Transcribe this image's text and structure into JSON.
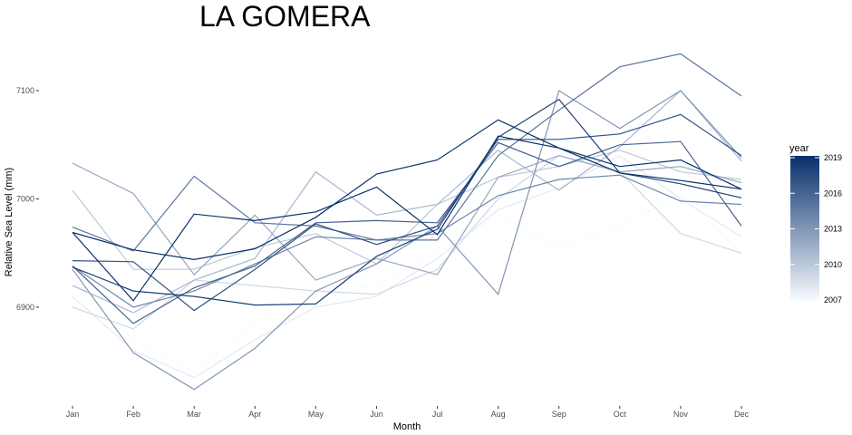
{
  "chart_data": {
    "type": "line",
    "title": "LA GOMERA",
    "xlabel": "Month",
    "ylabel": "Relative Sea Level (mm)",
    "categories": [
      "Jan",
      "Feb",
      "Mar",
      "Apr",
      "May",
      "Jun",
      "Jul",
      "Aug",
      "Sep",
      "Oct",
      "Nov",
      "Dec"
    ],
    "yticks": [
      6900,
      7000,
      7100
    ],
    "ylim": [
      6816,
      7143
    ],
    "grid": false,
    "legend": {
      "title": "year",
      "position": "right",
      "ticks": [
        2019,
        2016,
        2013,
        2010,
        2007
      ],
      "range": [
        2007,
        2019
      ],
      "color_low": "#f7fbff",
      "color_high": "#08306b"
    },
    "series": [
      {
        "year": 2007,
        "values": [
          6925,
          6870,
          6840,
          6885,
          6915,
          6920,
          6950,
          6985,
          6955,
          6975,
          7005,
          6950
        ]
      },
      {
        "year": 2008,
        "values": [
          6910,
          6860,
          6835,
          6870,
          6900,
          6910,
          6945,
          6990,
          7010,
          7040,
          7000,
          6965
        ]
      },
      {
        "year": 2009,
        "values": [
          6900,
          6880,
          6925,
          6920,
          6915,
          6912,
          6935,
          7000,
          7040,
          7025,
          6968,
          6950
        ]
      },
      {
        "year": 2010,
        "values": [
          7008,
          6935,
          6935,
          6955,
          6968,
          6940,
          6995,
          7020,
          7030,
          7045,
          7025,
          7018
        ]
      },
      {
        "year": 2011,
        "values": [
          6920,
          6895,
          6925,
          6945,
          7025,
          6985,
          6995,
          7045,
          7008,
          7048,
          7100,
          7035
        ]
      },
      {
        "year": 2012,
        "values": [
          7033,
          7005,
          6930,
          6985,
          6925,
          6945,
          6930,
          7020,
          7040,
          7025,
          7030,
          7015
        ]
      },
      {
        "year": 2013,
        "values": [
          6935,
          6858,
          6824,
          6862,
          6915,
          6940,
          6975,
          6912,
          7100,
          7065,
          7100,
          7038
        ]
      },
      {
        "year": 2014,
        "values": [
          6938,
          6900,
          6915,
          6940,
          6965,
          6962,
          6968,
          7003,
          7018,
          7022,
          6998,
          6995
        ]
      },
      {
        "year": 2015,
        "values": [
          6974,
          6952,
          7021,
          6978,
          6975,
          6962,
          6962,
          7040,
          7082,
          7122,
          7134,
          7095
        ]
      },
      {
        "year": 2016,
        "values": [
          6938,
          6885,
          6918,
          6938,
          6978,
          6980,
          6978,
          7052,
          7030,
          7050,
          7053,
          6975
        ]
      },
      {
        "year": 2017,
        "values": [
          6943,
          6942,
          6897,
          6935,
          6977,
          6958,
          6975,
          7055,
          7055,
          7060,
          7078,
          7040
        ]
      },
      {
        "year": 2018,
        "values": [
          6937,
          6915,
          6910,
          6902,
          6903,
          6947,
          6972,
          7057,
          7092,
          7024,
          7014,
          7001
        ]
      },
      {
        "year": 2019,
        "values": [
          6969,
          6953,
          6944,
          6954,
          6983,
          7023,
          7036,
          7073,
          7047,
          7030,
          7036,
          7009
        ]
      },
      {
        "year": 2019,
        "values": [
          6969,
          6906,
          6986,
          6980,
          6988,
          7011,
          6967,
          7058,
          7047,
          7024,
          7017,
          7009
        ]
      }
    ]
  }
}
